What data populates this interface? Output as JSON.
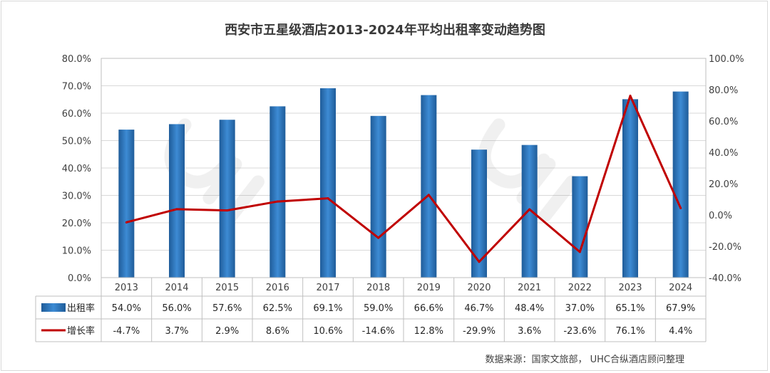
{
  "chart_data": {
    "type": "bar",
    "title": "西安市五星级酒店2013-2024年平均出租率变动趋势图",
    "categories": [
      "2013",
      "2014",
      "2015",
      "2016",
      "2017",
      "2018",
      "2019",
      "2020",
      "2021",
      "2022",
      "2023",
      "2024"
    ],
    "series": [
      {
        "name": "出租率",
        "type": "bar",
        "axis": "left",
        "color": "#2e75b6",
        "values": [
          54.0,
          56.0,
          57.6,
          62.5,
          69.1,
          59.0,
          66.6,
          46.7,
          48.4,
          37.0,
          65.1,
          67.9
        ],
        "labels": [
          "54.0%",
          "56.0%",
          "57.6%",
          "62.5%",
          "69.1%",
          "59.0%",
          "66.6%",
          "46.7%",
          "48.4%",
          "37.0%",
          "65.1%",
          "67.9%"
        ]
      },
      {
        "name": "增长率",
        "type": "line",
        "axis": "right",
        "color": "#c00000",
        "values": [
          -4.7,
          3.7,
          2.9,
          8.6,
          10.6,
          -14.6,
          12.8,
          -29.9,
          3.6,
          -23.6,
          76.1,
          4.4
        ],
        "labels": [
          "-4.7%",
          "3.7%",
          "2.9%",
          "8.6%",
          "10.6%",
          "-14.6%",
          "12.8%",
          "-29.9%",
          "3.6%",
          "-23.6%",
          "76.1%",
          "4.4%"
        ]
      }
    ],
    "left_axis": {
      "ylim": [
        0,
        80
      ],
      "ticks": [
        "0.0%",
        "10.0%",
        "20.0%",
        "30.0%",
        "40.0%",
        "50.0%",
        "60.0%",
        "70.0%",
        "80.0%"
      ]
    },
    "right_axis": {
      "ylim": [
        -40,
        100
      ],
      "ticks": [
        "-40.0%",
        "-20.0%",
        "0.0%",
        "20.0%",
        "40.0%",
        "60.0%",
        "80.0%",
        "100.0%"
      ]
    },
    "grid": true,
    "legend": "data-table"
  },
  "source": "数据来源：国家文旅部， UHC合纵酒店顾问整理"
}
